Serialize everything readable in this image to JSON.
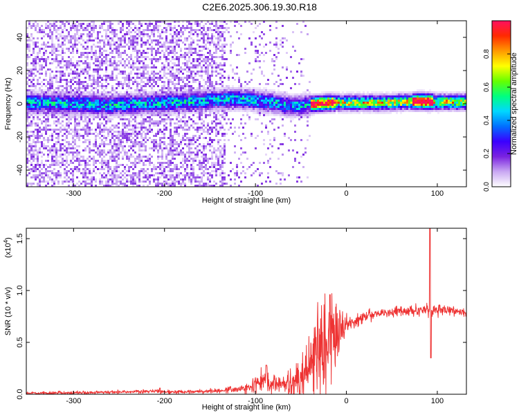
{
  "page": {
    "title": "C2E6.2025.306.19.30.R18"
  },
  "chart_data": [
    {
      "type": "heatmap",
      "title": "",
      "xlabel": "Height of straight line (km)",
      "ylabel": "Frequency (Hz)",
      "xlim": [
        -352,
        132
      ],
      "ylim": [
        -50,
        50
      ],
      "x_ticks": [
        -300,
        -200,
        -100,
        0,
        100
      ],
      "x_tick_labels": [
        "-300",
        "-200",
        "-100",
        "0",
        "100"
      ],
      "y_ticks": [
        -40,
        -20,
        0,
        20,
        40
      ],
      "y_tick_labels": [
        "-40",
        "-20",
        "0",
        "20",
        "40"
      ],
      "grid": false,
      "colorbar": {
        "label": "Normalized spectral amplitude",
        "range": [
          0,
          1
        ],
        "ticks": [
          0,
          0.2,
          0.4,
          0.6,
          0.8
        ],
        "tick_labels": [
          "0.0",
          "0.2",
          "0.4",
          "0.6",
          "0.8"
        ],
        "colors": [
          "#ffffff",
          "#c9a8f2",
          "#7a22e0",
          "#3a00ff",
          "#0070ff",
          "#00d8ff",
          "#00ff80",
          "#66ff00",
          "#ffff00",
          "#ff9900",
          "#ff2a00",
          "#ff1060"
        ]
      },
      "ridge": [
        {
          "x": -340,
          "y": 0.5
        },
        {
          "x": -300,
          "y": 0.0
        },
        {
          "x": -260,
          "y": -1.0
        },
        {
          "x": -220,
          "y": 0.0
        },
        {
          "x": -180,
          "y": 1.0
        },
        {
          "x": -150,
          "y": 2.0
        },
        {
          "x": -120,
          "y": 3.0
        },
        {
          "x": -100,
          "y": 2.0
        },
        {
          "x": -80,
          "y": 0.5
        },
        {
          "x": -60,
          "y": -1.5
        },
        {
          "x": -40,
          "y": -0.5
        },
        {
          "x": -20,
          "y": 0.5
        },
        {
          "x": 0,
          "y": 0.5
        },
        {
          "x": 40,
          "y": 0.5
        },
        {
          "x": 80,
          "y": 1.5
        },
        {
          "x": 100,
          "y": 1.0
        },
        {
          "x": 130,
          "y": 1.0
        }
      ]
    },
    {
      "type": "line",
      "title": "",
      "xlabel": "Height of straight line (km)",
      "ylabel": "SNR (10 * v/v)",
      "y_multiplier": "(x10",
      "y_multiplier_exp": "4",
      "y_multiplier_close": ")",
      "xlim": [
        -352,
        132
      ],
      "ylim": [
        0,
        1.6
      ],
      "x_ticks": [
        -300,
        -200,
        -100,
        0,
        100
      ],
      "x_tick_labels": [
        "-300",
        "-200",
        "-100",
        "0",
        "100"
      ],
      "y_ticks": [
        0,
        0.5,
        1.0,
        1.5
      ],
      "y_tick_labels": [
        "0.0",
        "0.5",
        "1.0",
        "1.5"
      ],
      "grid": false,
      "color": "#ee3333",
      "envelope": {
        "x": [
          -352,
          -250,
          -210,
          -200,
          -150,
          -110,
          -90,
          -70,
          -50,
          -40,
          -30,
          -20,
          -10,
          0,
          20,
          40,
          60,
          80,
          90,
          95,
          100,
          110,
          132
        ],
        "y": [
          0.01,
          0.02,
          0.03,
          0.02,
          0.03,
          0.06,
          0.13,
          0.07,
          0.12,
          0.27,
          0.43,
          0.47,
          0.56,
          0.66,
          0.75,
          0.79,
          0.8,
          0.81,
          0.82,
          0.8,
          0.82,
          0.81,
          0.79
        ]
      },
      "noise": {
        "x": [
          -352,
          -150,
          -110,
          -90,
          -75,
          -50,
          -30,
          -15,
          0,
          30,
          85,
          100,
          132
        ],
        "y": [
          0.008,
          0.01,
          0.02,
          0.06,
          0.04,
          0.09,
          0.25,
          0.2,
          0.05,
          0.02,
          0.03,
          0.025,
          0.02
        ]
      },
      "peaks": [
        {
          "x": -205,
          "y": 0.06
        },
        {
          "x": -88,
          "y": 0.28
        },
        {
          "x": -18,
          "y": 0.96
        },
        {
          "x": 92,
          "y": 1.6
        },
        {
          "x": 93,
          "y": 0.35
        }
      ]
    }
  ]
}
